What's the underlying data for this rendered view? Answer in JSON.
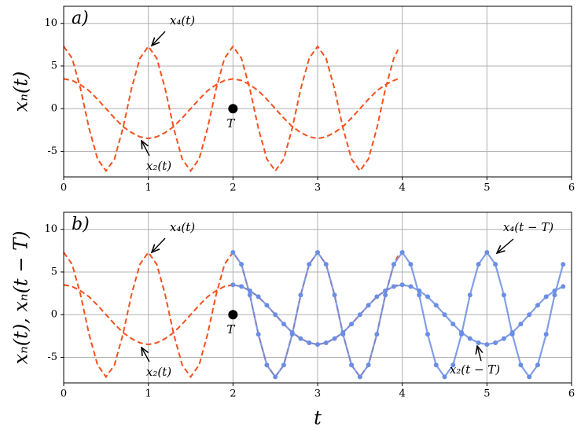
{
  "chart_data": [
    {
      "type": "line",
      "panel": "a)",
      "ylabel": "xₙ(t)",
      "xlim": [
        0,
        6
      ],
      "ylim": [
        -8,
        12
      ],
      "xticks": [
        0,
        1,
        2,
        3,
        4,
        5,
        6
      ],
      "yticks": [
        -5,
        0,
        5,
        10
      ],
      "grid": true,
      "point": {
        "label": "T",
        "x": 2,
        "y": 0,
        "color": "#000000"
      },
      "series": [
        {
          "name": "x₄(t)",
          "color": "#f4511e",
          "style": "dashed",
          "x": [
            0,
            0.1,
            0.2,
            0.3,
            0.4,
            0.5,
            0.6,
            0.7,
            0.8,
            0.9,
            1,
            1.1,
            1.2,
            1.3,
            1.4,
            1.5,
            1.6,
            1.7,
            1.8,
            1.9,
            2,
            2.1,
            2.2,
            2.3,
            2.4,
            2.5,
            2.6,
            2.7,
            2.8,
            2.9,
            3,
            3.1,
            3.2,
            3.3,
            3.4,
            3.5,
            3.6,
            3.7,
            3.8,
            3.9,
            3.95
          ],
          "values": [
            7.3,
            5.9,
            2.3,
            -2.3,
            -5.9,
            -7.3,
            -5.9,
            -2.3,
            2.3,
            5.9,
            7.3,
            5.9,
            2.3,
            -2.3,
            -5.9,
            -7.3,
            -5.9,
            -2.3,
            2.3,
            5.9,
            7.3,
            5.9,
            2.3,
            -2.3,
            -5.9,
            -7.3,
            -5.9,
            -2.3,
            2.3,
            5.9,
            7.3,
            5.9,
            2.3,
            -2.3,
            -5.9,
            -7.3,
            -5.9,
            -2.3,
            2.3,
            5.9,
            6.9
          ]
        },
        {
          "name": "x₂(t)",
          "color": "#f4511e",
          "style": "dashed",
          "x": [
            0,
            0.1,
            0.2,
            0.3,
            0.4,
            0.5,
            0.6,
            0.7,
            0.8,
            0.9,
            1,
            1.1,
            1.2,
            1.3,
            1.4,
            1.5,
            1.6,
            1.7,
            1.8,
            1.9,
            2,
            2.1,
            2.2,
            2.3,
            2.4,
            2.5,
            2.6,
            2.7,
            2.8,
            2.9,
            3,
            3.1,
            3.2,
            3.3,
            3.4,
            3.5,
            3.6,
            3.7,
            3.8,
            3.9,
            3.95
          ],
          "values": [
            3.5,
            3.3,
            2.8,
            2.1,
            1.1,
            0,
            -1.1,
            -2.1,
            -2.8,
            -3.3,
            -3.5,
            -3.3,
            -2.8,
            -2.1,
            -1.1,
            0,
            1.1,
            2.1,
            2.8,
            3.3,
            3.5,
            3.3,
            2.8,
            2.1,
            1.1,
            0,
            -1.1,
            -2.1,
            -2.8,
            -3.3,
            -3.5,
            -3.3,
            -2.8,
            -2.1,
            -1.1,
            0,
            1.1,
            2.1,
            2.8,
            3.3,
            3.5
          ]
        }
      ]
    },
    {
      "type": "line",
      "panel": "b)",
      "ylabel": "xₙ(t),  xₙ(t − T)",
      "xlabel": "t",
      "xlim": [
        0,
        6
      ],
      "ylim": [
        -8,
        12
      ],
      "xticks": [
        0,
        1,
        2,
        3,
        4,
        5,
        6
      ],
      "yticks": [
        -5,
        0,
        5,
        10
      ],
      "grid": true,
      "point": {
        "label": "T",
        "x": 2,
        "y": 0,
        "color": "#000000"
      },
      "series": [
        {
          "name": "x₄(t)",
          "color": "#f4511e",
          "style": "dashed",
          "x": [
            0,
            0.1,
            0.2,
            0.3,
            0.4,
            0.5,
            0.6,
            0.7,
            0.8,
            0.9,
            1,
            1.1,
            1.2,
            1.3,
            1.4,
            1.5,
            1.6,
            1.7,
            1.8,
            1.9,
            2,
            2.1,
            2.2,
            2.3,
            2.4,
            2.5,
            2.6,
            2.7,
            2.8,
            2.9,
            3,
            3.1,
            3.2,
            3.3,
            3.4,
            3.5,
            3.6,
            3.7,
            3.8,
            3.9,
            3.95
          ],
          "values": [
            7.3,
            5.9,
            2.3,
            -2.3,
            -5.9,
            -7.3,
            -5.9,
            -2.3,
            2.3,
            5.9,
            7.3,
            5.9,
            2.3,
            -2.3,
            -5.9,
            -7.3,
            -5.9,
            -2.3,
            2.3,
            5.9,
            7.3,
            5.9,
            2.3,
            -2.3,
            -5.9,
            -7.3,
            -5.9,
            -2.3,
            2.3,
            5.9,
            7.3,
            5.9,
            2.3,
            -2.3,
            -5.9,
            -7.3,
            -5.9,
            -2.3,
            2.3,
            5.9,
            6.9
          ]
        },
        {
          "name": "x₂(t)",
          "color": "#f4511e",
          "style": "dashed",
          "x": [
            0,
            0.1,
            0.2,
            0.3,
            0.4,
            0.5,
            0.6,
            0.7,
            0.8,
            0.9,
            1,
            1.1,
            1.2,
            1.3,
            1.4,
            1.5,
            1.6,
            1.7,
            1.8,
            1.9,
            2,
            2.1,
            2.2,
            2.3,
            2.4,
            2.5,
            2.6,
            2.7,
            2.8,
            2.9,
            3,
            3.1,
            3.2,
            3.3,
            3.4,
            3.5,
            3.6,
            3.7,
            3.8,
            3.9,
            3.95
          ],
          "values": [
            3.5,
            3.3,
            2.8,
            2.1,
            1.1,
            0,
            -1.1,
            -2.1,
            -2.8,
            -3.3,
            -3.5,
            -3.3,
            -2.8,
            -2.1,
            -1.1,
            0,
            1.1,
            2.1,
            2.8,
            3.3,
            3.5,
            3.3,
            2.8,
            2.1,
            1.1,
            0,
            -1.1,
            -2.1,
            -2.8,
            -3.3,
            -3.5,
            -3.3,
            -2.8,
            -2.1,
            -1.1,
            0,
            1.1,
            2.1,
            2.8,
            3.3,
            3.5
          ]
        },
        {
          "name": "x₄(t − T)",
          "color": "#6b8ee3",
          "style": "markers",
          "x": [
            2,
            2.1,
            2.2,
            2.3,
            2.4,
            2.5,
            2.6,
            2.7,
            2.8,
            2.9,
            3,
            3.1,
            3.2,
            3.3,
            3.4,
            3.5,
            3.6,
            3.7,
            3.8,
            3.9,
            4,
            4.1,
            4.2,
            4.3,
            4.4,
            4.5,
            4.6,
            4.7,
            4.8,
            4.9,
            5,
            5.1,
            5.2,
            5.3,
            5.4,
            5.5,
            5.6,
            5.7,
            5.8,
            5.9
          ],
          "values": [
            7.3,
            5.9,
            2.3,
            -2.3,
            -5.9,
            -7.3,
            -5.9,
            -2.3,
            2.3,
            5.9,
            7.3,
            5.9,
            2.3,
            -2.3,
            -5.9,
            -7.3,
            -5.9,
            -2.3,
            2.3,
            5.9,
            7.3,
            5.9,
            2.3,
            -2.3,
            -5.9,
            -7.3,
            -5.9,
            -2.3,
            2.3,
            5.9,
            7.3,
            5.9,
            2.3,
            -2.3,
            -5.9,
            -7.3,
            -5.9,
            -2.3,
            2.3,
            5.9
          ]
        },
        {
          "name": "x₂(t − T)",
          "color": "#6b8ee3",
          "style": "markers",
          "x": [
            2,
            2.1,
            2.2,
            2.3,
            2.4,
            2.5,
            2.6,
            2.7,
            2.8,
            2.9,
            3,
            3.1,
            3.2,
            3.3,
            3.4,
            3.5,
            3.6,
            3.7,
            3.8,
            3.9,
            4,
            4.1,
            4.2,
            4.3,
            4.4,
            4.5,
            4.6,
            4.7,
            4.8,
            4.9,
            5,
            5.1,
            5.2,
            5.3,
            5.4,
            5.5,
            5.6,
            5.7,
            5.8,
            5.9
          ],
          "values": [
            3.5,
            3.3,
            2.8,
            2.1,
            1.1,
            0,
            -1.1,
            -2.1,
            -2.8,
            -3.3,
            -3.5,
            -3.3,
            -2.8,
            -2.1,
            -1.1,
            0,
            1.1,
            2.1,
            2.8,
            3.3,
            3.5,
            3.3,
            2.8,
            2.1,
            1.1,
            0,
            -1.1,
            -2.1,
            -2.8,
            -3.3,
            -3.5,
            -3.3,
            -2.8,
            -2.1,
            -1.1,
            0,
            1.1,
            2.1,
            2.8,
            3.3
          ]
        }
      ]
    }
  ]
}
